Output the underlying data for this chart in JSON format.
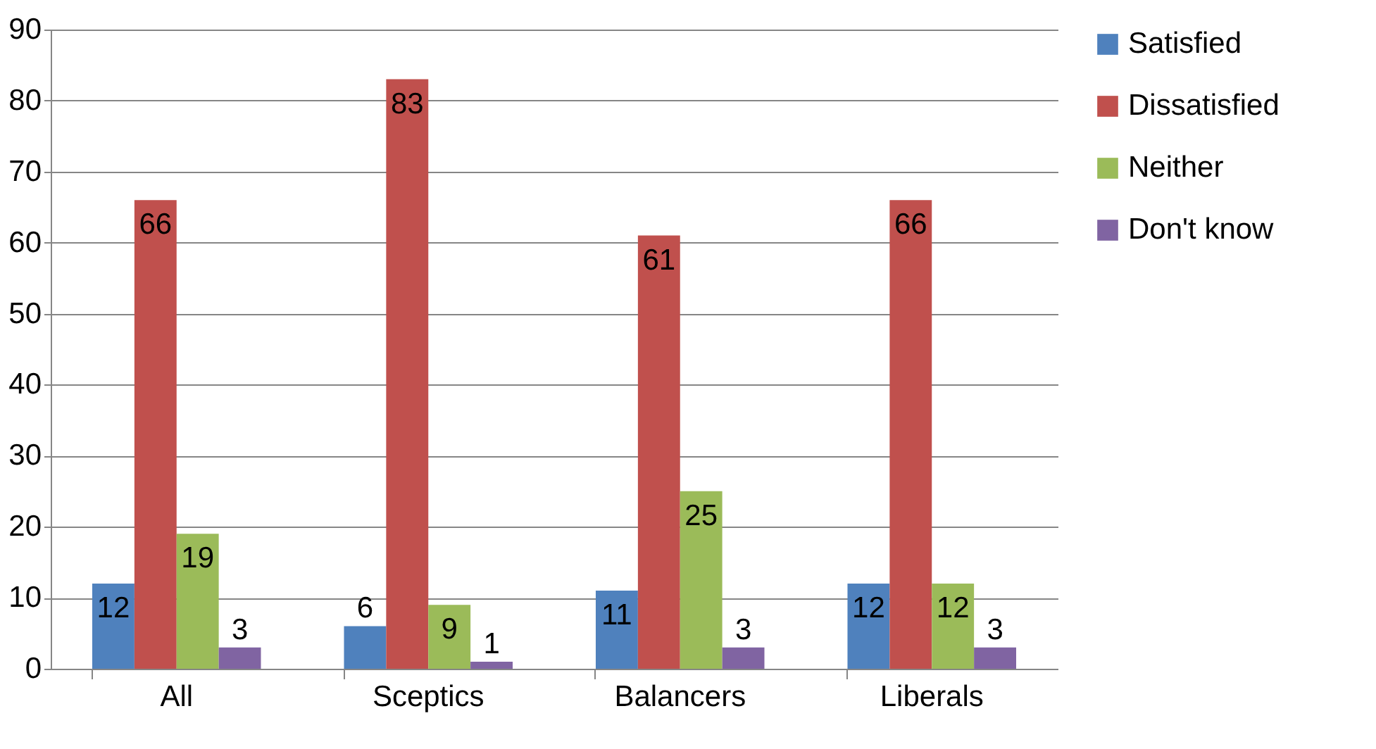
{
  "chart_data": {
    "type": "bar",
    "categories": [
      "All",
      "Sceptics",
      "Balancers",
      "Liberals"
    ],
    "series": [
      {
        "name": "Satisfied",
        "color": "#4f81bd",
        "values": [
          12,
          6,
          11,
          12
        ]
      },
      {
        "name": "Dissatisfied",
        "color": "#c0504d",
        "values": [
          66,
          83,
          61,
          66
        ]
      },
      {
        "name": "Neither",
        "color": "#9bbb59",
        "values": [
          19,
          9,
          25,
          12
        ]
      },
      {
        "name": "Don't know",
        "color": "#8064a2",
        "values": [
          3,
          1,
          3,
          3
        ]
      }
    ],
    "ylim": [
      0,
      90
    ],
    "yticks": [
      0,
      10,
      20,
      30,
      40,
      50,
      60,
      70,
      80,
      90
    ],
    "grid": "y",
    "legend": "right",
    "data_labels": true
  }
}
